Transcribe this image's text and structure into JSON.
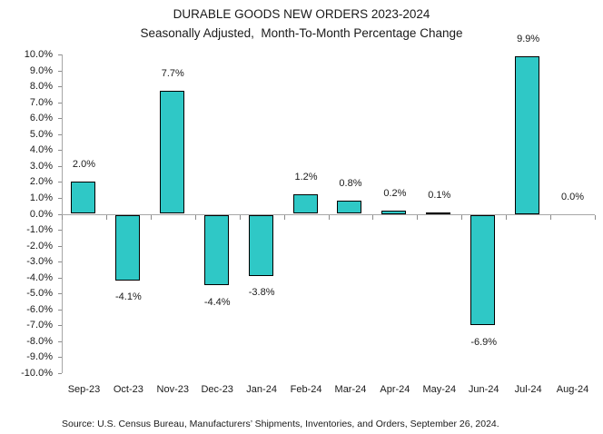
{
  "chart_data": {
    "type": "bar",
    "title": "DURABLE GOODS NEW ORDERS 2023-2024",
    "subtitle": "Seasonally Adjusted,  Month-To-Month Percentage Change",
    "categories": [
      "Sep-23",
      "Oct-23",
      "Nov-23",
      "Dec-23",
      "Jan-24",
      "Feb-24",
      "Mar-24",
      "Apr-24",
      "May-24",
      "Jun-24",
      "Jul-24",
      "Aug-24"
    ],
    "values": [
      2.0,
      -4.1,
      7.7,
      -4.4,
      -3.8,
      1.2,
      0.8,
      0.2,
      0.1,
      -6.9,
      9.9,
      0.0
    ],
    "value_labels": [
      "2.0%",
      "-4.1%",
      "7.7%",
      "-4.4%",
      "-3.8%",
      "1.2%",
      "0.8%",
      "0.2%",
      "0.1%",
      "-6.9%",
      "9.9%",
      "0.0%"
    ],
    "xlabel": "",
    "ylabel": "",
    "ylim": [
      -10,
      10
    ],
    "y_tick_step": 1,
    "y_tick_labels": [
      "10.0%",
      "9.0%",
      "8.0%",
      "7.0%",
      "6.0%",
      "5.0%",
      "4.0%",
      "3.0%",
      "2.0%",
      "1.0%",
      "0.0%",
      "-1.0%",
      "-2.0%",
      "-3.0%",
      "-4.0%",
      "-5.0%",
      "-6.0%",
      "-7.0%",
      "-8.0%",
      "-9.0%",
      "-10.0%"
    ],
    "grid": "off",
    "legend": "none",
    "colors": {
      "bar_fill": "#2FC8C6",
      "bar_border": "#000000",
      "axis_line": "#A6A6A6",
      "tick": "#8C8C8C",
      "text": "#000000"
    },
    "source": "Source: U.S. Census Bureau, Manufacturers’ Shipments, Inventories, and Orders, September 26, 2024."
  }
}
